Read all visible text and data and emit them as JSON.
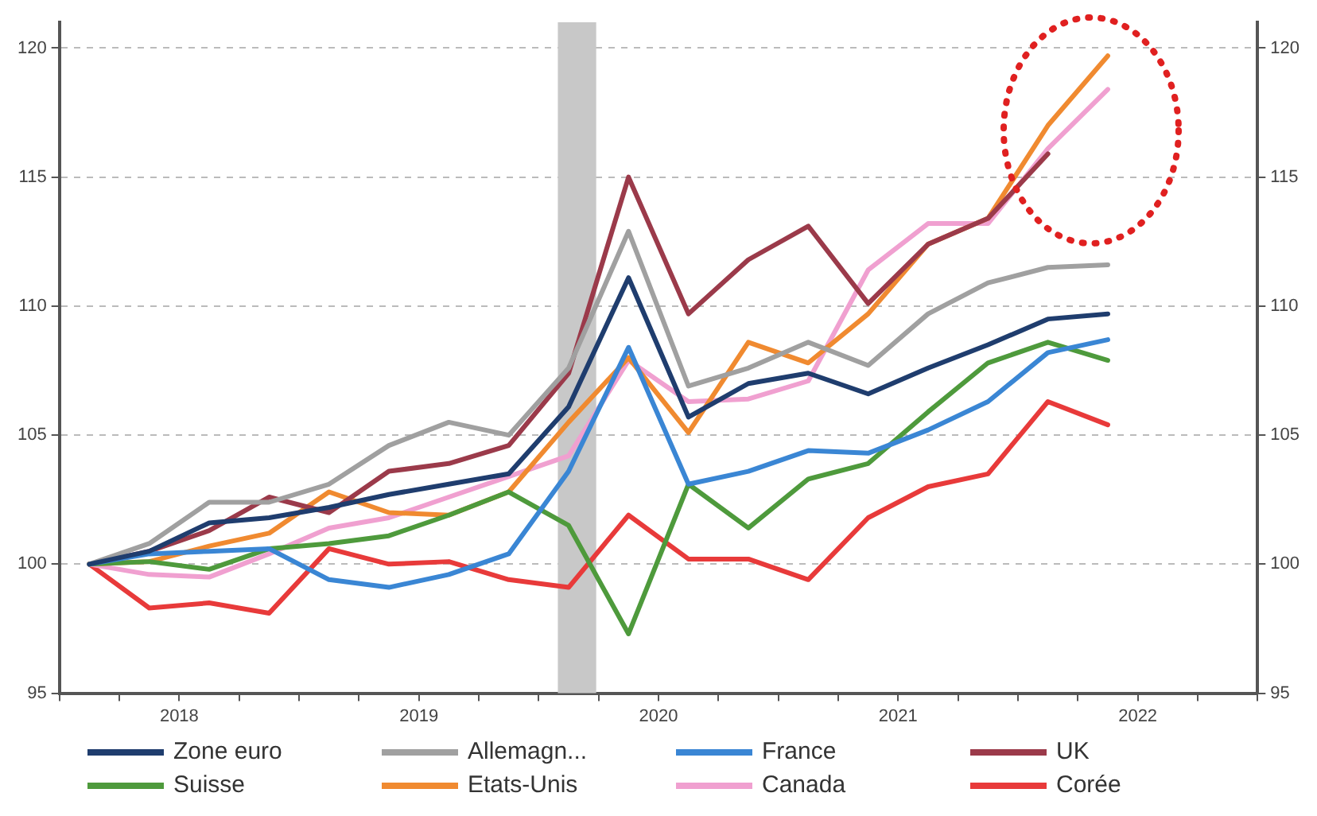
{
  "chart_data": {
    "type": "line",
    "x": [
      2018.125,
      2018.375,
      2018.625,
      2018.875,
      2019.125,
      2019.375,
      2019.625,
      2019.875,
      2020.125,
      2020.375,
      2020.625,
      2020.875,
      2021.125,
      2021.375,
      2021.625,
      2021.875,
      2022.125,
      2022.375
    ],
    "series": [
      {
        "name": "Zone euro",
        "color": "#1f3d6e",
        "values": [
          100,
          100.5,
          101.6,
          101.8,
          102.2,
          102.7,
          103.1,
          103.5,
          106.1,
          111.1,
          105.7,
          107.0,
          107.4,
          106.6,
          107.6,
          108.5,
          109.5,
          109.7
        ]
      },
      {
        "name": "Allemagn...",
        "color": "#a0a0a0",
        "values": [
          100,
          100.8,
          102.4,
          102.4,
          103.1,
          104.6,
          105.5,
          105.0,
          107.6,
          112.9,
          106.9,
          107.6,
          108.6,
          107.7,
          109.7,
          110.9,
          111.5,
          111.6
        ]
      },
      {
        "name": "France",
        "color": "#3a86d4",
        "values": [
          100,
          100.4,
          100.5,
          100.6,
          99.4,
          99.1,
          99.6,
          100.4,
          103.6,
          108.4,
          103.1,
          103.6,
          104.4,
          104.3,
          105.2,
          106.3,
          108.2,
          108.7
        ]
      },
      {
        "name": "UK",
        "color": "#9b3a4a",
        "values": [
          100,
          100.5,
          101.3,
          102.6,
          102.0,
          103.6,
          103.9,
          104.6,
          107.4,
          115.0,
          109.7,
          111.8,
          113.1,
          110.1,
          112.4,
          113.4,
          115.9,
          null
        ]
      },
      {
        "name": "Suisse",
        "color": "#4e9a3c",
        "values": [
          100,
          100.1,
          99.8,
          100.6,
          100.8,
          101.1,
          101.9,
          102.8,
          101.5,
          97.3,
          103.1,
          101.4,
          103.3,
          103.9,
          105.9,
          107.8,
          108.6,
          107.9
        ]
      },
      {
        "name": "Etats-Unis",
        "color": "#f08a30",
        "values": [
          100,
          100.1,
          100.7,
          101.2,
          102.8,
          102.0,
          101.9,
          102.8,
          105.5,
          108.0,
          105.1,
          108.6,
          107.8,
          109.7,
          112.4,
          113.4,
          117.0,
          119.7
        ]
      },
      {
        "name": "Canada",
        "color": "#f0a0d0",
        "values": [
          100,
          99.6,
          99.5,
          100.4,
          101.4,
          101.8,
          102.6,
          103.4,
          104.2,
          107.9,
          106.3,
          106.4,
          107.1,
          111.4,
          113.2,
          113.2,
          116.1,
          118.4
        ]
      },
      {
        "name": "Corée",
        "color": "#e83a3a",
        "values": [
          100,
          98.3,
          98.5,
          98.1,
          100.6,
          100.0,
          100.1,
          99.4,
          99.1,
          101.9,
          100.2,
          100.2,
          99.4,
          101.8,
          103.0,
          103.5,
          106.3,
          105.4
        ]
      }
    ],
    "xlim": [
      2018,
      2023
    ],
    "xticks": [
      {
        "value": 2018,
        "label": null
      },
      {
        "value": 2018.25,
        "label": null
      },
      {
        "value": 2018.5,
        "label": "2018"
      },
      {
        "value": 2018.75,
        "label": null
      },
      {
        "value": 2019,
        "label": null
      },
      {
        "value": 2019.25,
        "label": null
      },
      {
        "value": 2019.5,
        "label": "2019"
      },
      {
        "value": 2019.75,
        "label": null
      },
      {
        "value": 2020,
        "label": null
      },
      {
        "value": 2020.25,
        "label": null
      },
      {
        "value": 2020.5,
        "label": "2020"
      },
      {
        "value": 2020.75,
        "label": null
      },
      {
        "value": 2021,
        "label": null
      },
      {
        "value": 2021.25,
        "label": null
      },
      {
        "value": 2021.5,
        "label": "2021"
      },
      {
        "value": 2021.75,
        "label": null
      },
      {
        "value": 2022,
        "label": null
      },
      {
        "value": 2022.25,
        "label": null
      },
      {
        "value": 2022.5,
        "label": "2022"
      },
      {
        "value": 2022.75,
        "label": null
      },
      {
        "value": 2023,
        "label": null
      }
    ],
    "ylim": [
      95,
      121
    ],
    "yticks": [
      95,
      100,
      105,
      110,
      115,
      120
    ],
    "y2lim": [
      95,
      121
    ],
    "y2ticks": [
      95,
      100,
      105,
      110,
      115,
      120
    ],
    "bands": [
      {
        "axis": "x",
        "from": 2020.08,
        "to": 2020.24,
        "color": "#c8c8c8"
      }
    ],
    "grid": "y",
    "legend": "bottom",
    "marker": "none",
    "line_style": "solid"
  }
}
